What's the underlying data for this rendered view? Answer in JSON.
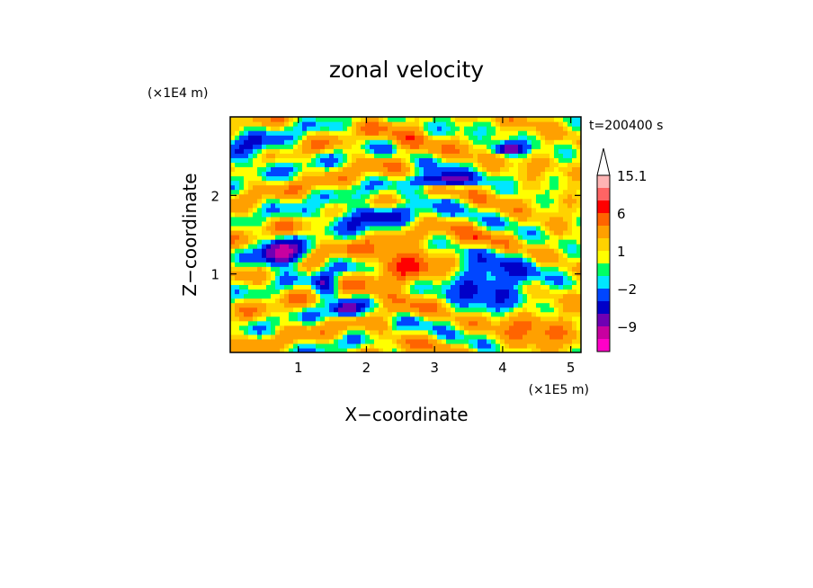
{
  "chart_data": {
    "type": "heatmap",
    "title": "zonal velocity",
    "xlabel": "X−coordinate",
    "ylabel": "Z−coordinate",
    "x_unit": "(×1E5 m)",
    "y_unit": "(×1E4 m)",
    "time_label": "t=200400 s",
    "xlim": [
      0,
      5.15
    ],
    "ylim": [
      0,
      3.0
    ],
    "x_ticks": [
      1,
      2,
      3,
      4,
      5
    ],
    "y_ticks": [
      1,
      2
    ],
    "x_tick_labels": [
      "1",
      "2",
      "3",
      "4",
      "5"
    ],
    "y_tick_labels": [
      "1",
      "2"
    ],
    "colorbar": {
      "levels": [
        -15.1,
        -12,
        -9,
        -6,
        -4,
        -2,
        -1,
        0,
        1,
        2,
        4,
        6,
        9,
        12,
        15.1
      ],
      "colors": [
        "#ff00c8",
        "#c800a0",
        "#6e00b4",
        "#0000c8",
        "#0046ff",
        "#00e6ff",
        "#00ff64",
        "#ffff00",
        "#ffd200",
        "#ffa000",
        "#ff6400",
        "#ff0000",
        "#ff6464",
        "#ffb4b4"
      ],
      "tick_labels": [
        {
          "value": 15.1,
          "label": "15.1"
        },
        {
          "value": 6,
          "label": "6"
        },
        {
          "value": 1,
          "label": "1"
        },
        {
          "value": -2,
          "label": "−2"
        },
        {
          "value": -9,
          "label": "−9"
        }
      ],
      "extend": "max"
    }
  }
}
